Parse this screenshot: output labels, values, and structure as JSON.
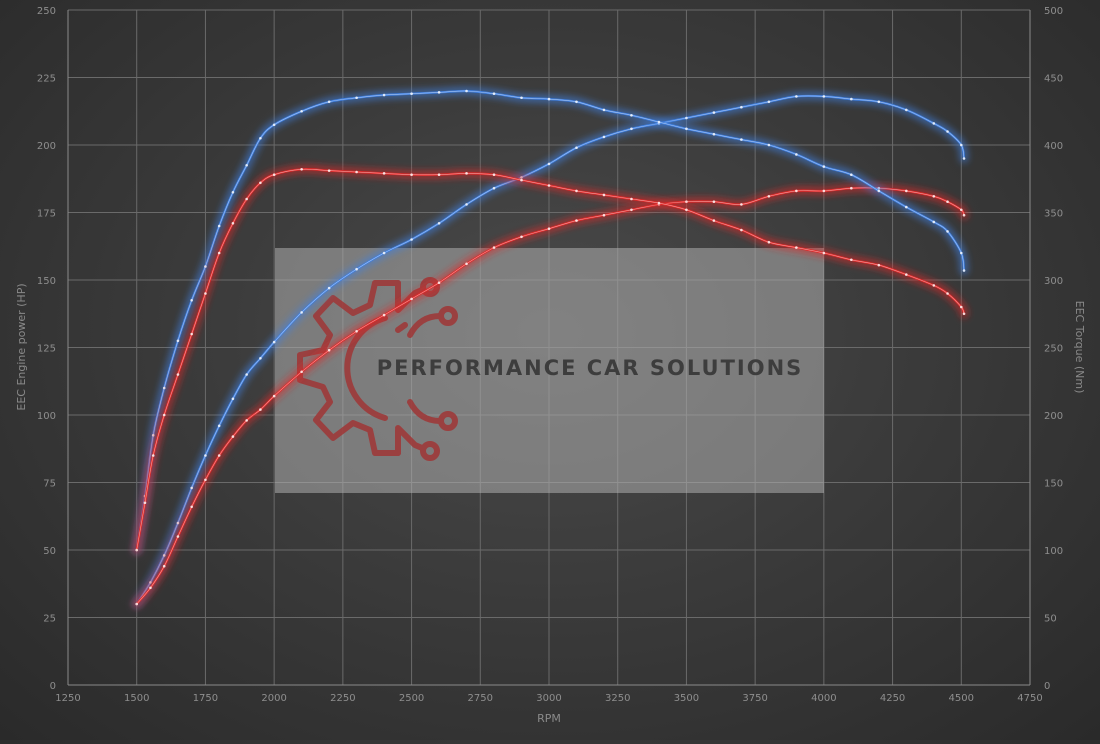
{
  "chart_data": {
    "type": "line",
    "xlabel": "RPM",
    "ylabel_left": "EEC Engine power (HP)",
    "ylabel_right": "EEC Torque (Nm)",
    "xlim": [
      1250,
      4750
    ],
    "ylim_left": [
      0,
      250
    ],
    "ylim_right": [
      0,
      500
    ],
    "x_ticks": [
      1250,
      1500,
      1750,
      2000,
      2250,
      2500,
      2750,
      3000,
      3250,
      3500,
      3750,
      4000,
      4250,
      4500,
      4750
    ],
    "y_ticks_left": [
      0,
      25,
      50,
      75,
      100,
      125,
      150,
      175,
      200,
      225,
      250
    ],
    "y_ticks_right": [
      0,
      50,
      100,
      150,
      200,
      250,
      300,
      350,
      400,
      450,
      500
    ],
    "grid": true,
    "legend": "none",
    "series": [
      {
        "axis": "left",
        "color": "#3f7fe0",
        "points": [
          [
            1500,
            30
          ],
          [
            1550,
            38
          ],
          [
            1600,
            48
          ],
          [
            1650,
            60
          ],
          [
            1700,
            73
          ],
          [
            1750,
            85
          ],
          [
            1800,
            96
          ],
          [
            1850,
            106
          ],
          [
            1900,
            115
          ],
          [
            1950,
            121
          ],
          [
            2000,
            127
          ],
          [
            2100,
            138
          ],
          [
            2200,
            147
          ],
          [
            2300,
            154
          ],
          [
            2400,
            160
          ],
          [
            2500,
            165
          ],
          [
            2600,
            171
          ],
          [
            2700,
            178
          ],
          [
            2800,
            184
          ],
          [
            2900,
            188
          ],
          [
            3000,
            193
          ],
          [
            3100,
            199
          ],
          [
            3200,
            203
          ],
          [
            3300,
            206
          ],
          [
            3400,
            208
          ],
          [
            3500,
            210
          ],
          [
            3600,
            212
          ],
          [
            3700,
            214
          ],
          [
            3800,
            216
          ],
          [
            3900,
            218
          ],
          [
            4000,
            218
          ],
          [
            4100,
            217
          ],
          [
            4200,
            216
          ],
          [
            4300,
            213
          ],
          [
            4400,
            208
          ],
          [
            4450,
            205
          ],
          [
            4500,
            200
          ],
          [
            4510,
            195
          ]
        ]
      },
      {
        "axis": "left",
        "color": "#e02a2a",
        "points": [
          [
            1500,
            30
          ],
          [
            1550,
            36
          ],
          [
            1600,
            44
          ],
          [
            1650,
            55
          ],
          [
            1700,
            66
          ],
          [
            1750,
            76
          ],
          [
            1800,
            85
          ],
          [
            1850,
            92
          ],
          [
            1900,
            98
          ],
          [
            1950,
            102
          ],
          [
            2000,
            107
          ],
          [
            2100,
            116
          ],
          [
            2200,
            124
          ],
          [
            2300,
            131
          ],
          [
            2400,
            137
          ],
          [
            2500,
            143
          ],
          [
            2600,
            149
          ],
          [
            2700,
            156
          ],
          [
            2800,
            162
          ],
          [
            2900,
            166
          ],
          [
            3000,
            169
          ],
          [
            3100,
            172
          ],
          [
            3200,
            174
          ],
          [
            3300,
            176
          ],
          [
            3400,
            178
          ],
          [
            3500,
            179
          ],
          [
            3600,
            179
          ],
          [
            3700,
            178
          ],
          [
            3800,
            181
          ],
          [
            3900,
            183
          ],
          [
            4000,
            183
          ],
          [
            4100,
            184
          ],
          [
            4200,
            184
          ],
          [
            4300,
            183
          ],
          [
            4400,
            181
          ],
          [
            4450,
            179
          ],
          [
            4500,
            176
          ],
          [
            4510,
            174
          ]
        ]
      },
      {
        "axis": "right",
        "color": "#3f7fe0",
        "points": [
          [
            1500,
            100
          ],
          [
            1530,
            140
          ],
          [
            1560,
            185
          ],
          [
            1600,
            220
          ],
          [
            1650,
            255
          ],
          [
            1700,
            285
          ],
          [
            1750,
            310
          ],
          [
            1800,
            340
          ],
          [
            1850,
            365
          ],
          [
            1900,
            385
          ],
          [
            1950,
            405
          ],
          [
            2000,
            415
          ],
          [
            2100,
            425
          ],
          [
            2200,
            432
          ],
          [
            2300,
            435
          ],
          [
            2400,
            437
          ],
          [
            2500,
            438
          ],
          [
            2600,
            439
          ],
          [
            2700,
            440
          ],
          [
            2800,
            438
          ],
          [
            2900,
            435
          ],
          [
            3000,
            434
          ],
          [
            3100,
            432
          ],
          [
            3200,
            426
          ],
          [
            3300,
            422
          ],
          [
            3400,
            417
          ],
          [
            3500,
            412
          ],
          [
            3600,
            408
          ],
          [
            3700,
            404
          ],
          [
            3800,
            400
          ],
          [
            3900,
            393
          ],
          [
            4000,
            384
          ],
          [
            4100,
            378
          ],
          [
            4200,
            366
          ],
          [
            4300,
            354
          ],
          [
            4400,
            343
          ],
          [
            4450,
            336
          ],
          [
            4500,
            320
          ],
          [
            4510,
            307
          ]
        ]
      },
      {
        "axis": "right",
        "color": "#e02a2a",
        "points": [
          [
            1500,
            100
          ],
          [
            1530,
            135
          ],
          [
            1560,
            170
          ],
          [
            1600,
            200
          ],
          [
            1650,
            230
          ],
          [
            1700,
            260
          ],
          [
            1750,
            290
          ],
          [
            1800,
            320
          ],
          [
            1850,
            342
          ],
          [
            1900,
            360
          ],
          [
            1950,
            372
          ],
          [
            2000,
            378
          ],
          [
            2100,
            382
          ],
          [
            2200,
            381
          ],
          [
            2300,
            380
          ],
          [
            2400,
            379
          ],
          [
            2500,
            378
          ],
          [
            2600,
            378
          ],
          [
            2700,
            379
          ],
          [
            2800,
            378
          ],
          [
            2900,
            374
          ],
          [
            3000,
            370
          ],
          [
            3100,
            366
          ],
          [
            3200,
            363
          ],
          [
            3300,
            360
          ],
          [
            3400,
            357
          ],
          [
            3500,
            352
          ],
          [
            3600,
            344
          ],
          [
            3700,
            337
          ],
          [
            3800,
            328
          ],
          [
            3900,
            324
          ],
          [
            4000,
            320
          ],
          [
            4100,
            315
          ],
          [
            4200,
            311
          ],
          [
            4300,
            304
          ],
          [
            4400,
            296
          ],
          [
            4450,
            290
          ],
          [
            4500,
            280
          ],
          [
            4510,
            275
          ]
        ]
      }
    ]
  },
  "watermark": {
    "brand_text": "PERFORMANCE CAR SOLUTIONS"
  }
}
